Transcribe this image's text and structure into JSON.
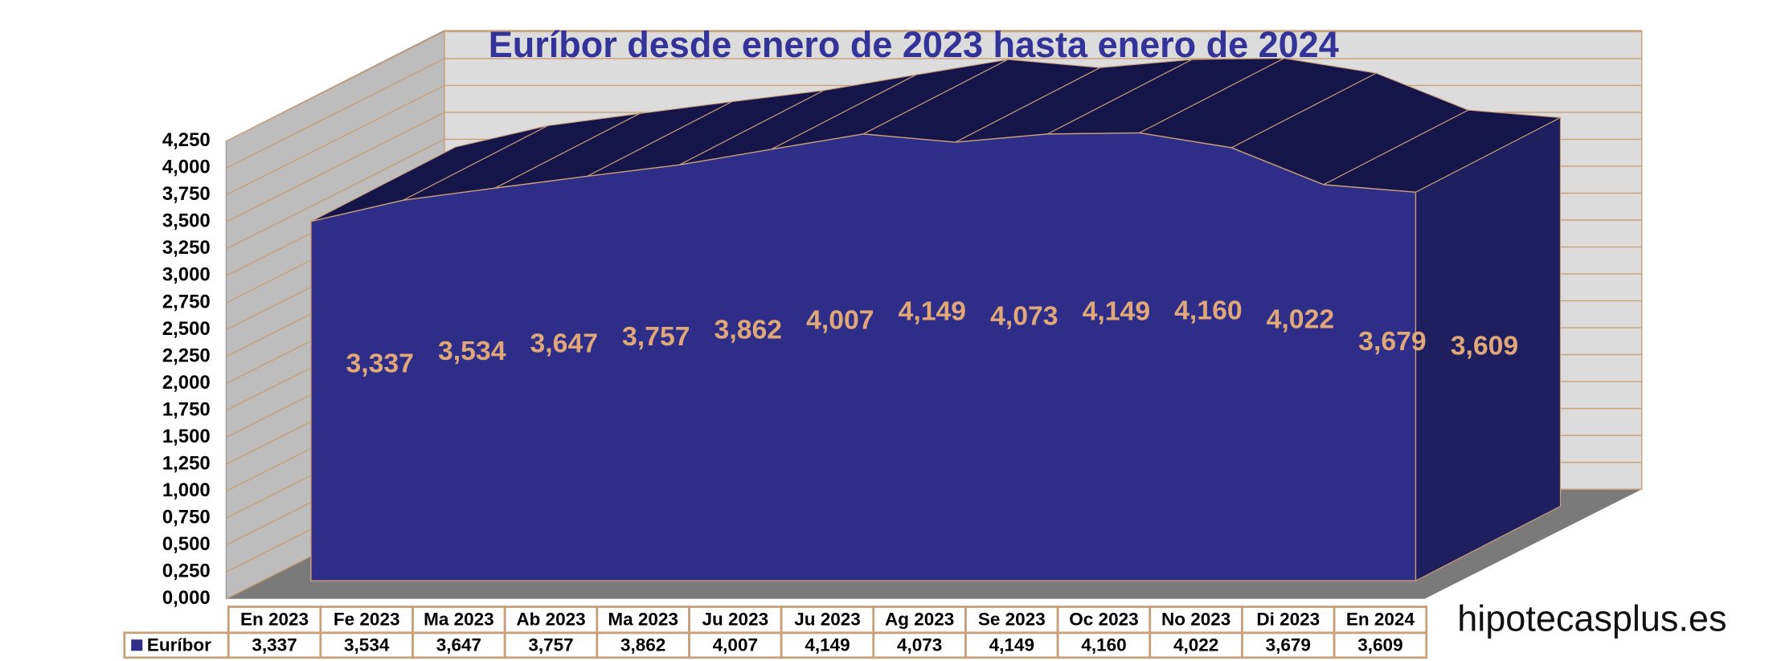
{
  "chart_data": {
    "type": "area3d",
    "title": "Euríbor desde enero de 2023 hasta enero de 2024",
    "categories": [
      "En 2023",
      "Fe 2023",
      "Ma 2023",
      "Ab 2023",
      "Ma 2023",
      "Ju 2023",
      "Ju 2023",
      "Ag 2023",
      "Se 2023",
      "Oc 2023",
      "No 2023",
      "Di 2023",
      "En 2024"
    ],
    "series": [
      {
        "name": "Euríbor",
        "color": "#2e2d88",
        "values": [
          3.337,
          3.534,
          3.647,
          3.757,
          3.862,
          4.007,
          4.149,
          4.073,
          4.149,
          4.16,
          4.022,
          3.679,
          3.609
        ],
        "value_labels": [
          "3,337",
          "3,534",
          "3,647",
          "3,757",
          "3,862",
          "4,007",
          "4,149",
          "4,073",
          "4,149",
          "4,160",
          "4,022",
          "3,679",
          "3,609"
        ]
      }
    ],
    "ylim": [
      0,
      4.25
    ],
    "yticks": [
      {
        "value": 0,
        "label": "0,000"
      },
      {
        "value": 0.25,
        "label": "0,250"
      },
      {
        "value": 0.5,
        "label": "0,500"
      },
      {
        "value": 0.75,
        "label": "0,750"
      },
      {
        "value": 1,
        "label": "1,000"
      },
      {
        "value": 1.25,
        "label": "1,250"
      },
      {
        "value": 1.5,
        "label": "1,500"
      },
      {
        "value": 1.75,
        "label": "1,750"
      },
      {
        "value": 2,
        "label": "2,000"
      },
      {
        "value": 2.25,
        "label": "2,250"
      },
      {
        "value": 2.5,
        "label": "2,500"
      },
      {
        "value": 2.75,
        "label": "2,750"
      },
      {
        "value": 3,
        "label": "3,000"
      },
      {
        "value": 3.25,
        "label": "3,250"
      },
      {
        "value": 3.5,
        "label": "3,500"
      },
      {
        "value": 3.75,
        "label": "3,750"
      },
      {
        "value": 4,
        "label": "4,000"
      },
      {
        "value": 4.25,
        "label": "4,250"
      }
    ],
    "grid": true,
    "watermark": "hipotecasplus.es"
  }
}
